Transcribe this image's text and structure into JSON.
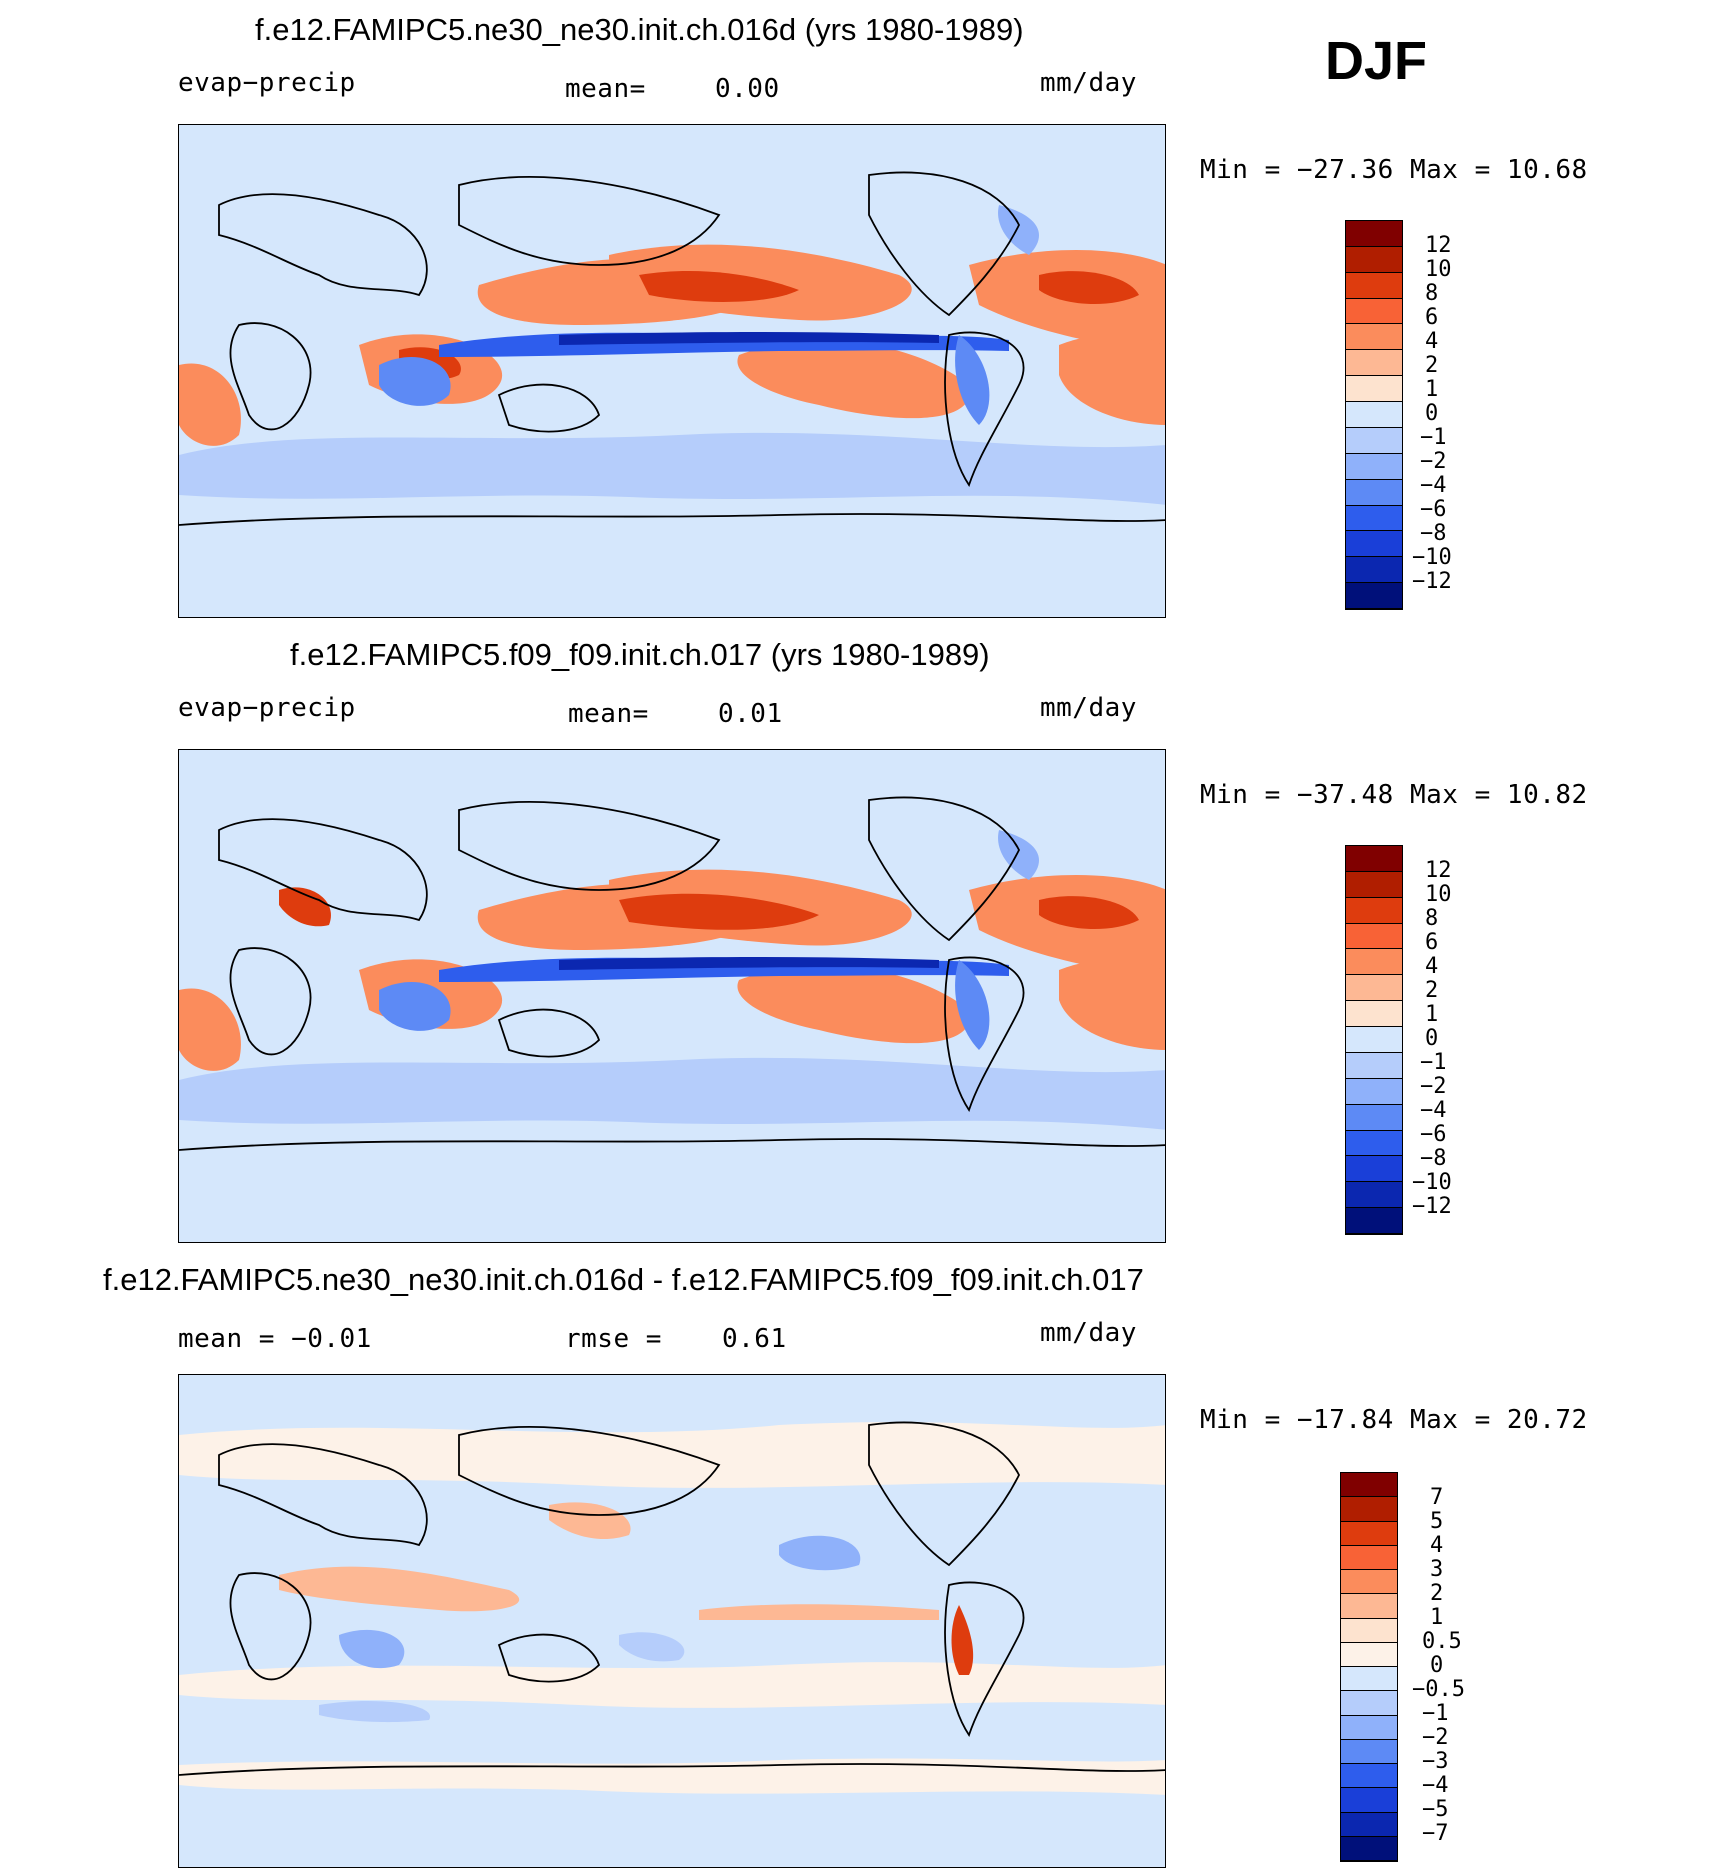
{
  "season": "DJF",
  "palettes": {
    "abs": [
      "#800000",
      "#b01e00",
      "#de3c0e",
      "#f86236",
      "#fb8c5c",
      "#fdb894",
      "#fde3cf",
      "#d5e7fc",
      "#b5cdfb",
      "#8fb1fa",
      "#5d8af5",
      "#2e5ded",
      "#1a3fd8",
      "#0b27b0",
      "#00107a"
    ],
    "diff": [
      "#800000",
      "#b01e00",
      "#de3c0e",
      "#f86236",
      "#fb8c5c",
      "#fdb894",
      "#fde3cf",
      "#fdf2e8",
      "#d5e7fc",
      "#b5cdfb",
      "#8fb1fa",
      "#5d8af5",
      "#2e5ded",
      "#1a3fd8",
      "#0b27b0",
      "#00107a"
    ]
  },
  "panels": [
    {
      "title": "f.e12.FAMIPC5.ne30_ne30.init.ch.016d (yrs 1980-1989)",
      "left_label": "evap−precip",
      "center_label": "mean=",
      "center_value": "0.00",
      "units": "mm/day",
      "min_max": "Min = −27.36 Max =  10.68",
      "colorbar_labels": [
        "12",
        "10",
        "8",
        "6",
        "4",
        "2",
        "1",
        "0",
        "−1",
        "−2",
        "−4",
        "−6",
        "−8",
        "−10",
        "−12"
      ]
    },
    {
      "title": "f.e12.FAMIPC5.f09_f09.init.ch.017 (yrs 1980-1989)",
      "left_label": "evap−precip",
      "center_label": "mean=",
      "center_value": "0.01",
      "units": "mm/day",
      "min_max": "Min = −37.48 Max =  10.82",
      "colorbar_labels": [
        "12",
        "10",
        "8",
        "6",
        "4",
        "2",
        "1",
        "0",
        "−1",
        "−2",
        "−4",
        "−6",
        "−8",
        "−10",
        "−12"
      ]
    },
    {
      "title": "f.e12.FAMIPC5.ne30_ne30.init.ch.016d - f.e12.FAMIPC5.f09_f09.init.ch.017",
      "left_label": "mean =  −0.01",
      "center_label": "rmse =",
      "center_value": "0.61",
      "units": "mm/day",
      "min_max": "Min = −17.84 Max =  20.72",
      "colorbar_labels": [
        "7",
        "5",
        "4",
        "3",
        "2",
        "1",
        "0.5",
        "0",
        "−0.5",
        "−1",
        "−2",
        "−3",
        "−4",
        "−5",
        "−7"
      ]
    }
  ],
  "chart_data": [
    {
      "type": "heatmap",
      "title": "f.e12.FAMIPC5.ne30_ne30.init.ch.016d (yrs 1980-1989)",
      "variable": "evap−precip",
      "units": "mm/day",
      "season": "DJF",
      "mean": 0.0,
      "min": -27.36,
      "max": 10.68,
      "levels": [
        -12,
        -10,
        -8,
        -6,
        -4,
        -2,
        -1,
        0,
        1,
        2,
        4,
        6,
        8,
        10,
        12
      ]
    },
    {
      "type": "heatmap",
      "title": "f.e12.FAMIPC5.f09_f09.init.ch.017 (yrs 1980-1989)",
      "variable": "evap−precip",
      "units": "mm/day",
      "season": "DJF",
      "mean": 0.01,
      "min": -37.48,
      "max": 10.82,
      "levels": [
        -12,
        -10,
        -8,
        -6,
        -4,
        -2,
        -1,
        0,
        1,
        2,
        4,
        6,
        8,
        10,
        12
      ]
    },
    {
      "type": "heatmap",
      "title": "f.e12.FAMIPC5.ne30_ne30.init.ch.016d - f.e12.FAMIPC5.f09_f09.init.ch.017",
      "units": "mm/day",
      "season": "DJF",
      "mean": -0.01,
      "rmse": 0.61,
      "min": -17.84,
      "max": 20.72,
      "levels": [
        -7,
        -5,
        -4,
        -3,
        -2,
        -1,
        -0.5,
        0,
        0.5,
        1,
        2,
        3,
        4,
        5,
        7
      ]
    }
  ]
}
